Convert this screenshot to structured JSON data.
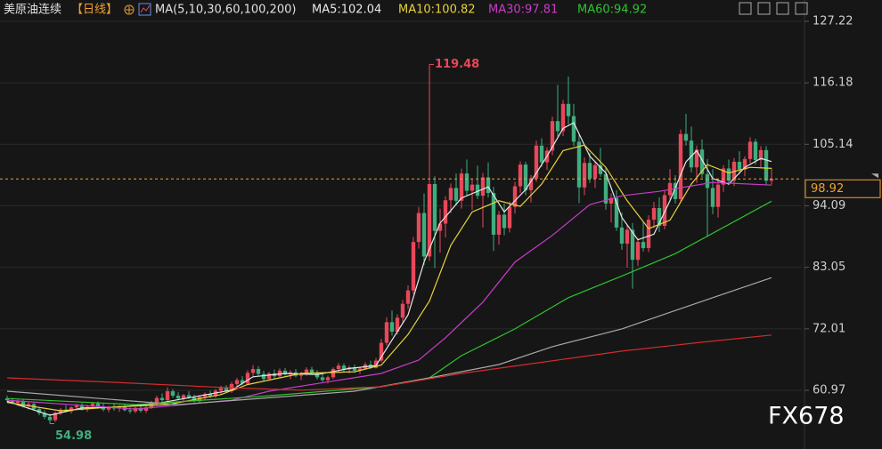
{
  "chart_data": {
    "type": "candlestick",
    "title": "美原油连续",
    "period": "【日线】",
    "indicator": "MA(5,10,30,60,100,200)",
    "watermark": "FX678",
    "up_color": "#e8485a",
    "down_color": "#3fae7e",
    "ylim": [
      50.43,
      131.05
    ],
    "yticks": [
      60.97,
      72.01,
      83.05,
      94.09,
      105.14,
      116.18,
      127.22
    ],
    "grid": true,
    "ohlc": [
      [
        59.5,
        60.0,
        58.8,
        59.2
      ],
      [
        59.2,
        59.6,
        58.5,
        58.7
      ],
      [
        58.7,
        59.3,
        58.2,
        59.0
      ],
      [
        59.0,
        59.4,
        57.9,
        58.1
      ],
      [
        58.1,
        58.8,
        57.5,
        58.5
      ],
      [
        58.5,
        58.9,
        57.3,
        57.6
      ],
      [
        57.6,
        58.0,
        56.5,
        56.9
      ],
      [
        56.9,
        57.4,
        55.8,
        56.2
      ],
      [
        56.2,
        56.8,
        54.98,
        55.6
      ],
      [
        55.6,
        57.2,
        55.3,
        56.9
      ],
      [
        56.9,
        57.8,
        56.5,
        57.5
      ],
      [
        57.5,
        58.3,
        57.0,
        57.2
      ],
      [
        57.2,
        58.1,
        56.8,
        57.9
      ],
      [
        57.9,
        58.6,
        57.4,
        58.2
      ],
      [
        58.2,
        58.7,
        57.3,
        57.6
      ],
      [
        57.6,
        58.4,
        57.1,
        58.0
      ],
      [
        58.0,
        58.9,
        57.6,
        58.6
      ],
      [
        58.6,
        59.0,
        57.8,
        58.1
      ],
      [
        58.1,
        58.6,
        57.2,
        57.5
      ],
      [
        57.5,
        58.2,
        57.0,
        57.9
      ],
      [
        57.9,
        58.5,
        57.3,
        57.7
      ],
      [
        57.7,
        58.3,
        57.1,
        58.0
      ],
      [
        58.0,
        58.6,
        57.2,
        57.4
      ],
      [
        57.4,
        57.9,
        56.8,
        57.2
      ],
      [
        57.2,
        58.0,
        56.9,
        57.8
      ],
      [
        57.8,
        58.4,
        57.0,
        57.3
      ],
      [
        57.3,
        58.1,
        56.9,
        57.9
      ],
      [
        57.9,
        59.1,
        57.6,
        58.8
      ],
      [
        58.8,
        60.0,
        58.4,
        59.6
      ],
      [
        59.6,
        60.4,
        58.9,
        59.2
      ],
      [
        59.2,
        61.5,
        59.0,
        60.8
      ],
      [
        60.8,
        61.2,
        59.6,
        60.0
      ],
      [
        60.0,
        60.6,
        59.2,
        59.5
      ],
      [
        59.5,
        60.3,
        58.9,
        60.1
      ],
      [
        60.1,
        60.8,
        59.4,
        59.7
      ],
      [
        59.7,
        60.2,
        58.8,
        59.0
      ],
      [
        59.0,
        60.1,
        58.7,
        59.8
      ],
      [
        59.8,
        60.6,
        59.3,
        60.3
      ],
      [
        60.3,
        60.9,
        59.6,
        59.9
      ],
      [
        59.9,
        61.2,
        59.6,
        60.9
      ],
      [
        60.9,
        61.8,
        60.2,
        61.4
      ],
      [
        61.4,
        61.9,
        60.6,
        60.8
      ],
      [
        60.8,
        62.5,
        60.5,
        62.1
      ],
      [
        62.1,
        63.2,
        61.6,
        62.8
      ],
      [
        62.8,
        63.5,
        61.9,
        62.2
      ],
      [
        62.2,
        64.6,
        62.0,
        64.1
      ],
      [
        64.1,
        65.5,
        63.4,
        64.8
      ],
      [
        64.8,
        65.3,
        63.6,
        63.9
      ],
      [
        63.9,
        64.5,
        62.6,
        63.0
      ],
      [
        63.0,
        64.3,
        62.7,
        64.0
      ],
      [
        64.0,
        64.7,
        63.1,
        63.5
      ],
      [
        63.5,
        64.9,
        63.2,
        64.5
      ],
      [
        64.5,
        65.0,
        63.6,
        63.8
      ],
      [
        63.8,
        64.6,
        63.0,
        64.2
      ],
      [
        64.2,
        64.8,
        63.3,
        63.6
      ],
      [
        63.6,
        64.3,
        62.8,
        64.0
      ],
      [
        64.0,
        65.1,
        63.6,
        64.7
      ],
      [
        64.7,
        65.2,
        63.8,
        64.1
      ],
      [
        64.1,
        64.6,
        62.9,
        63.3
      ],
      [
        63.3,
        64.0,
        62.5,
        62.8
      ],
      [
        62.8,
        63.6,
        62.2,
        63.3
      ],
      [
        63.3,
        65.1,
        63.0,
        64.8
      ],
      [
        64.8,
        65.9,
        64.2,
        65.4
      ],
      [
        65.4,
        65.8,
        64.3,
        64.7
      ],
      [
        64.7,
        65.4,
        64.0,
        65.1
      ],
      [
        65.1,
        65.6,
        64.1,
        64.5
      ],
      [
        64.5,
        65.2,
        63.9,
        64.9
      ],
      [
        64.9,
        66.0,
        64.6,
        65.6
      ],
      [
        65.6,
        66.3,
        64.8,
        65.0
      ],
      [
        65.0,
        66.8,
        64.9,
        66.3
      ],
      [
        66.3,
        70.2,
        66.0,
        69.5
      ],
      [
        69.5,
        74.1,
        69.0,
        73.2
      ],
      [
        73.2,
        75.3,
        70.8,
        71.5
      ],
      [
        71.5,
        74.6,
        71.0,
        74.0
      ],
      [
        74.0,
        77.2,
        73.1,
        76.5
      ],
      [
        76.5,
        79.8,
        75.6,
        78.9
      ],
      [
        78.9,
        88.5,
        78.2,
        87.6
      ],
      [
        87.6,
        93.9,
        86.4,
        92.8
      ],
      [
        92.8,
        96.3,
        83.5,
        85.0
      ],
      [
        85.0,
        119.48,
        84.2,
        98.0
      ],
      [
        98.0,
        99.4,
        82.9,
        89.6
      ],
      [
        89.6,
        93.6,
        85.7,
        90.9
      ],
      [
        90.9,
        95.8,
        88.4,
        95.1
      ],
      [
        95.1,
        98.1,
        92.8,
        97.3
      ],
      [
        97.3,
        99.9,
        94.2,
        95.0
      ],
      [
        95.0,
        100.8,
        93.6,
        99.9
      ],
      [
        99.9,
        102.4,
        95.9,
        96.8
      ],
      [
        96.8,
        99.0,
        93.4,
        97.9
      ],
      [
        97.9,
        101.3,
        95.3,
        95.9
      ],
      [
        95.9,
        100.0,
        90.2,
        99.2
      ],
      [
        99.2,
        101.9,
        95.6,
        96.4
      ],
      [
        96.4,
        97.5,
        86.0,
        88.9
      ],
      [
        88.9,
        93.2,
        87.1,
        92.5
      ],
      [
        92.5,
        94.5,
        88.8,
        90.1
      ],
      [
        90.1,
        94.9,
        89.3,
        93.9
      ],
      [
        93.9,
        98.4,
        92.7,
        97.6
      ],
      [
        97.6,
        102.1,
        96.4,
        101.5
      ],
      [
        101.5,
        102.0,
        96.0,
        96.9
      ],
      [
        96.9,
        99.6,
        94.7,
        99.0
      ],
      [
        99.0,
        105.8,
        98.4,
        104.9
      ],
      [
        104.9,
        106.2,
        101.1,
        101.9
      ],
      [
        101.9,
        104.6,
        100.5,
        104.0
      ],
      [
        104.0,
        110.1,
        103.2,
        109.3
      ],
      [
        109.3,
        115.8,
        106.5,
        107.5
      ],
      [
        107.5,
        113.1,
        106.6,
        112.4
      ],
      [
        112.4,
        117.3,
        108.7,
        110.2
      ],
      [
        110.2,
        112.4,
        104.8,
        105.6
      ],
      [
        105.6,
        106.9,
        94.6,
        97.4
      ],
      [
        97.4,
        102.8,
        96.0,
        101.8
      ],
      [
        101.8,
        103.6,
        98.2,
        99.0
      ],
      [
        99.0,
        102.0,
        97.3,
        101.4
      ],
      [
        101.4,
        104.5,
        99.3,
        99.8
      ],
      [
        99.8,
        101.0,
        93.4,
        94.5
      ],
      [
        94.5,
        96.3,
        91.1,
        95.5
      ],
      [
        95.5,
        96.9,
        89.6,
        90.2
      ],
      [
        90.2,
        92.9,
        86.2,
        87.3
      ],
      [
        87.3,
        90.6,
        83.0,
        89.8
      ],
      [
        89.8,
        91.0,
        79.2,
        84.4
      ],
      [
        84.4,
        88.3,
        83.3,
        87.6
      ],
      [
        87.6,
        91.2,
        85.9,
        86.5
      ],
      [
        86.5,
        92.4,
        85.8,
        91.6
      ],
      [
        91.6,
        94.8,
        90.1,
        93.7
      ],
      [
        93.7,
        95.6,
        89.4,
        90.5
      ],
      [
        90.5,
        96.9,
        89.9,
        96.0
      ],
      [
        96.0,
        100.7,
        95.2,
        98.2
      ],
      [
        98.2,
        99.6,
        94.5,
        95.3
      ],
      [
        95.3,
        107.8,
        94.9,
        107.0
      ],
      [
        107.0,
        110.6,
        104.9,
        105.8
      ],
      [
        105.8,
        108.3,
        100.1,
        101.0
      ],
      [
        101.0,
        104.9,
        98.2,
        104.2
      ],
      [
        104.2,
        106.0,
        99.1,
        99.8
      ],
      [
        99.8,
        102.5,
        88.5,
        97.3
      ],
      [
        97.3,
        100.7,
        92.6,
        93.9
      ],
      [
        93.9,
        98.6,
        92.0,
        97.9
      ],
      [
        97.9,
        101.4,
        96.6,
        100.8
      ],
      [
        100.8,
        102.4,
        97.8,
        98.6
      ],
      [
        98.6,
        102.7,
        97.6,
        102.0
      ],
      [
        102.0,
        103.9,
        99.8,
        100.6
      ],
      [
        100.6,
        103.0,
        99.4,
        102.5
      ],
      [
        102.5,
        106.4,
        101.8,
        105.6
      ],
      [
        105.6,
        106.1,
        101.5,
        102.3
      ],
      [
        102.3,
        104.8,
        101.0,
        104.1
      ],
      [
        104.1,
        104.8,
        97.8,
        98.6
      ],
      [
        98.6,
        100.9,
        97.9,
        98.92
      ]
    ],
    "series": [
      {
        "name": "MA5:102.04",
        "color": "#e8e8e8",
        "x": [
          0,
          8,
          14,
          20,
          28,
          35,
          42,
          46,
          52,
          58,
          64,
          69,
          72,
          75,
          78,
          81,
          85,
          90,
          93,
          97,
          101,
          104,
          106,
          109,
          112,
          115,
          118,
          121,
          124,
          127,
          129,
          132,
          135,
          138,
          141,
          143
        ],
        "values": [
          59.0,
          56.5,
          57.8,
          57.9,
          58.6,
          59.8,
          61.0,
          63.4,
          64.0,
          63.8,
          64.9,
          65.4,
          70.0,
          74.5,
          84.0,
          91.0,
          95.5,
          97.5,
          93.0,
          97.0,
          103.0,
          108.0,
          109.0,
          103.0,
          100.0,
          92.0,
          88.0,
          89.0,
          95.0,
          102.0,
          104.0,
          99.0,
          98.0,
          101.0,
          102.6,
          102.04
        ]
      },
      {
        "name": "MA10:100.82",
        "color": "#e8d23a",
        "x": [
          0,
          10,
          20,
          30,
          40,
          45,
          55,
          65,
          70,
          75,
          79,
          83,
          87,
          92,
          96,
          100,
          104,
          108,
          112,
          116,
          120,
          124,
          128,
          131,
          135,
          139,
          143
        ],
        "values": [
          58.8,
          57.3,
          58.0,
          58.4,
          60.2,
          62.0,
          64.0,
          64.3,
          65.5,
          71.0,
          77.0,
          87.0,
          93.0,
          95.0,
          94.0,
          98.0,
          104.0,
          105.0,
          101.0,
          95.0,
          90.0,
          91.5,
          98.0,
          101.5,
          100.0,
          101.0,
          100.82
        ]
      },
      {
        "name": "MA30:97.81",
        "color": "#c83cc8",
        "x": [
          0,
          24,
          42,
          49,
          70,
          77,
          82,
          89,
          95,
          102,
          109,
          115,
          122,
          132,
          143
        ],
        "values": [
          59.2,
          57.6,
          59.2,
          60.8,
          64.0,
          66.4,
          70.4,
          76.8,
          84.0,
          88.8,
          94.3,
          95.9,
          96.7,
          98.3,
          97.81
        ]
      },
      {
        "name": "MA60:94.92",
        "color": "#2ec42e",
        "x": [
          0,
          24,
          49,
          70,
          79,
          85,
          95,
          105,
          115,
          125,
          143
        ],
        "values": [
          59.5,
          58.4,
          60.0,
          61.6,
          63.2,
          67.2,
          72.0,
          77.6,
          81.5,
          85.5,
          94.92
        ]
      },
      {
        "color": "#a8a8a8",
        "x": [
          0,
          32,
          65,
          79,
          92,
          102,
          115,
          132,
          143
        ],
        "values": [
          60.8,
          58.4,
          60.8,
          63.2,
          65.6,
          68.8,
          72.0,
          77.6,
          81.2
        ]
      },
      {
        "color": "#d42c2c",
        "x": [
          0,
          20,
          40,
          55,
          70,
          85,
          100,
          115,
          130,
          143
        ],
        "values": [
          63.2,
          62.4,
          61.5,
          61.0,
          61.6,
          64.0,
          66.0,
          68.0,
          69.6,
          70.9
        ]
      }
    ],
    "annotations": [
      {
        "label": "119.48",
        "value": 119.48,
        "x": 79,
        "color": "#e8485a"
      },
      {
        "label": "54.98",
        "value": 54.98,
        "x": 8,
        "color": "#3fae7e"
      }
    ],
    "last_price": {
      "label": "98.92",
      "value": 98.92,
      "color": "#f0a030"
    }
  }
}
